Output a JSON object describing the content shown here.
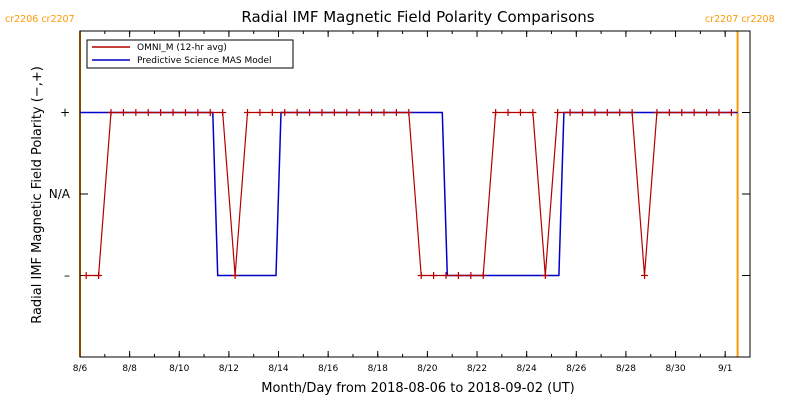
{
  "chart_data": {
    "type": "line",
    "title": "Radial IMF Magnetic Field Polarity Comparisons",
    "xlabel": "Month/Day from 2018-08-06 to 2018-09-02 (UT)",
    "ylabel": "Radial IMF Magnetic Field Polarity (−,+)",
    "x_start": "2018-08-06",
    "x_end": "2018-09-02",
    "xlim": [
      0,
      27
    ],
    "ylim": [
      -2,
      2
    ],
    "x_ticks": [
      {
        "x": 0,
        "label": "8/6"
      },
      {
        "x": 2,
        "label": "8/8"
      },
      {
        "x": 4,
        "label": "8/10"
      },
      {
        "x": 6,
        "label": "8/12"
      },
      {
        "x": 8,
        "label": "8/14"
      },
      {
        "x": 10,
        "label": "8/16"
      },
      {
        "x": 12,
        "label": "8/18"
      },
      {
        "x": 14,
        "label": "8/20"
      },
      {
        "x": 16,
        "label": "8/22"
      },
      {
        "x": 18,
        "label": "8/24"
      },
      {
        "x": 20,
        "label": "8/26"
      },
      {
        "x": 22,
        "label": "8/28"
      },
      {
        "x": 24,
        "label": "8/30"
      },
      {
        "x": 26,
        "label": "9/1"
      }
    ],
    "y_ticks": [
      {
        "y": 1,
        "label": "+"
      },
      {
        "y": 0,
        "label": "N/A"
      },
      {
        "y": -1,
        "label": "–"
      }
    ],
    "carrington_markers": [
      {
        "x": 0.0,
        "labels": [
          "cr2206",
          "cr2207"
        ],
        "side": "left"
      },
      {
        "x": 26.5,
        "labels": [
          "cr2207",
          "cr2208"
        ],
        "side": "right"
      }
    ],
    "marker_color": "#ff9900",
    "legend": {
      "position": "top-left"
    },
    "series": [
      {
        "name": "OMNI_M (12-hr avg)",
        "color": "#b40000",
        "marker": "+",
        "x": [
          0.25,
          0.75,
          1.25,
          1.75,
          2.25,
          2.75,
          3.25,
          3.75,
          4.25,
          4.75,
          5.25,
          5.75,
          6.25,
          6.75,
          7.25,
          7.75,
          8.25,
          8.75,
          9.25,
          9.75,
          10.25,
          10.75,
          11.25,
          11.75,
          12.25,
          12.75,
          13.25,
          13.75,
          14.25,
          14.75,
          15.25,
          15.75,
          16.25,
          16.75,
          17.25,
          17.75,
          18.25,
          18.75,
          19.25,
          19.75,
          20.25,
          20.75,
          21.25,
          21.75,
          22.25,
          22.75,
          23.25,
          23.75,
          24.25,
          24.75,
          25.25,
          25.75,
          26.25
        ],
        "values": [
          -1,
          -1,
          1,
          1,
          1,
          1,
          1,
          1,
          1,
          1,
          1,
          1,
          -1,
          1,
          1,
          1,
          1,
          1,
          1,
          1,
          1,
          1,
          1,
          1,
          1,
          1,
          1,
          -1,
          -1,
          -1,
          -1,
          -1,
          -1,
          1,
          1,
          1,
          1,
          -1,
          1,
          1,
          1,
          1,
          1,
          1,
          1,
          -1,
          1,
          1,
          1,
          1,
          1,
          1,
          1
        ]
      },
      {
        "name": "Predictive Science MAS Model",
        "color": "#0000c8",
        "x": [
          0.0,
          5.35,
          5.55,
          7.9,
          8.1,
          14.6,
          14.8,
          19.3,
          19.5,
          26.5
        ],
        "values": [
          1,
          1,
          -1,
          -1,
          1,
          1,
          -1,
          -1,
          1,
          1
        ]
      }
    ]
  }
}
